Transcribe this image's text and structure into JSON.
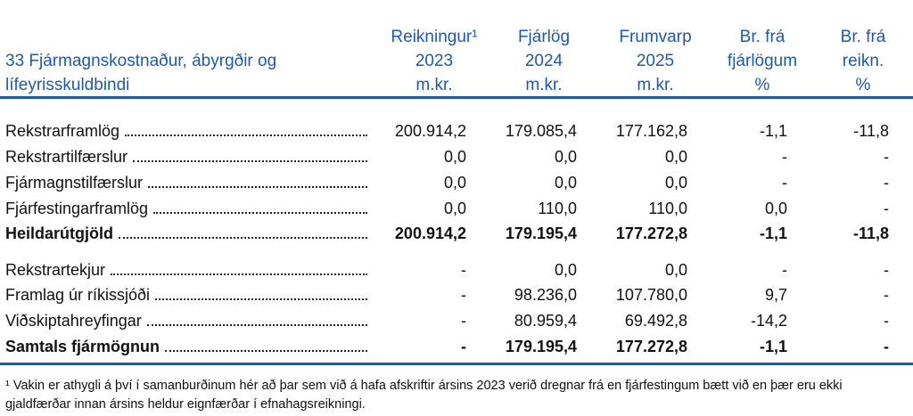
{
  "header": {
    "title": "33 Fjármagnskostnaður, ábyrgðir og lífeyrisskuldbindi",
    "columns": [
      [
        "Reikningur¹",
        "2023",
        "m.kr."
      ],
      [
        "Fjárlög",
        "2024",
        "m.kr."
      ],
      [
        "Frumvarp",
        "2025",
        "m.kr."
      ],
      [
        "Br. frá",
        "fjárlögum",
        "%"
      ],
      [
        "Br. frá",
        "reikn.",
        "%"
      ]
    ]
  },
  "table": {
    "rows": [
      {
        "label": "Rekstrarframlög",
        "values": [
          "200.914,2",
          "179.085,4",
          "177.162,8",
          "-1,1",
          "-11,8"
        ],
        "bold": false
      },
      {
        "label": "Rekstrartilfærslur",
        "values": [
          "0,0",
          "0,0",
          "0,0",
          "-",
          "-"
        ],
        "bold": false
      },
      {
        "label": "Fjármagnstilfærslur",
        "values": [
          "0,0",
          "0,0",
          "0,0",
          "-",
          "-"
        ],
        "bold": false
      },
      {
        "label": "Fjárfestingarframlög",
        "values": [
          "0,0",
          "110,0",
          "110,0",
          "0,0",
          "-"
        ],
        "bold": false
      },
      {
        "label": "Heildarútgjöld",
        "values": [
          "200.914,2",
          "179.195,4",
          "177.272,8",
          "-1,1",
          "-11,8"
        ],
        "bold": true
      },
      {
        "label": "Rekstrartekjur",
        "values": [
          "-",
          "0,0",
          "0,0",
          "-",
          "-"
        ],
        "bold": false
      },
      {
        "label": "Framlag úr ríkissjóði",
        "values": [
          "-",
          "98.236,0",
          "107.780,0",
          "9,7",
          "-"
        ],
        "bold": false
      },
      {
        "label": "Viðskiptahreyfingar",
        "values": [
          "-",
          "80.959,4",
          "69.492,8",
          "-14,2",
          "-"
        ],
        "bold": false
      },
      {
        "label": "Samtals fjármögnun",
        "values": [
          "-",
          "179.195,4",
          "177.272,8",
          "-1,1",
          "-"
        ],
        "bold": true
      }
    ]
  },
  "footnote": "¹ Vakin er athygli á því í samanburðinum hér að þar sem við á hafa afskriftir ársins 2023 verið dregnar frá en fjárfestingum bætt við en þær eru ekki gjaldfærðar innan ársins heldur eignfærðar í efnahagsreikningi."
}
